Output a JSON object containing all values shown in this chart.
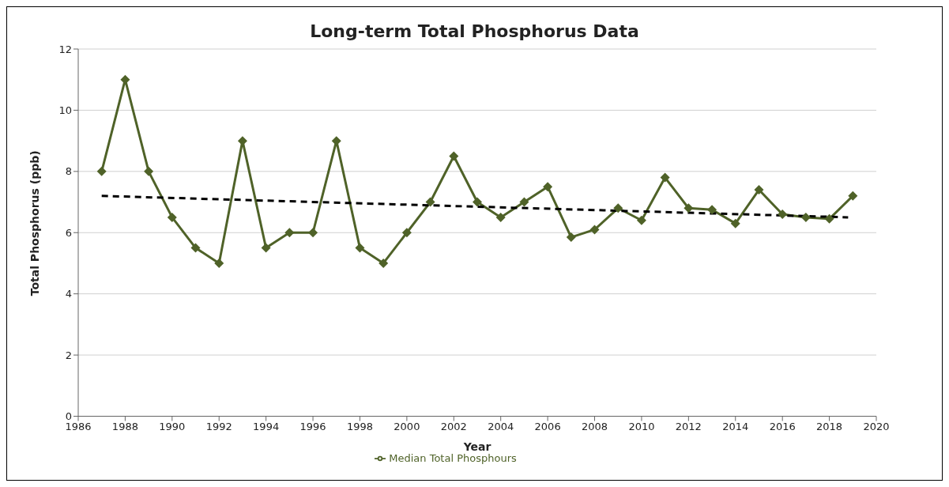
{
  "chart_data": {
    "type": "line",
    "title": "Long-term Total Phosphorus Data",
    "xlabel": "Year",
    "ylabel": "Total Phosphorus  (ppb)",
    "xlim": [
      1986,
      2020
    ],
    "xticks": [
      1986,
      1988,
      1990,
      1992,
      1994,
      1996,
      1998,
      2000,
      2002,
      2004,
      2006,
      2008,
      2010,
      2012,
      2014,
      2016,
      2018,
      2020
    ],
    "ylim": [
      0,
      12
    ],
    "yticks": [
      0,
      2,
      4,
      6,
      8,
      10,
      12
    ],
    "grid": "y",
    "legend": "bottom",
    "series": [
      {
        "name": "Median Total Phosphours",
        "color": "#4f6228",
        "marker": "diamond",
        "line_style": "solid",
        "x": [
          1987,
          1988,
          1989,
          1990,
          1991,
          1992,
          1993,
          1994,
          1995,
          1996,
          1997,
          1998,
          1999,
          2000,
          2001,
          2002,
          2003,
          2004,
          2005,
          2006,
          2007,
          2008,
          2009,
          2010,
          2011,
          2012,
          2013,
          2014,
          2015,
          2016,
          2017,
          2018,
          2019
        ],
        "values": [
          8,
          11,
          8,
          6.5,
          5.5,
          5,
          9,
          5.5,
          6,
          6,
          9,
          5.5,
          5,
          6,
          7,
          8.5,
          7,
          6.5,
          7,
          7.5,
          5.85,
          6.1,
          6.8,
          6.4,
          7.8,
          6.8,
          6.75,
          6.3,
          7.4,
          6.6,
          6.5,
          6.45,
          7.2
        ]
      },
      {
        "type": "line",
        "color": "#000000",
        "marker": "none",
        "line_style": "dashed",
        "x": [
          1987,
          2018.8
        ],
        "values": [
          7.2,
          6.5
        ]
      }
    ]
  }
}
